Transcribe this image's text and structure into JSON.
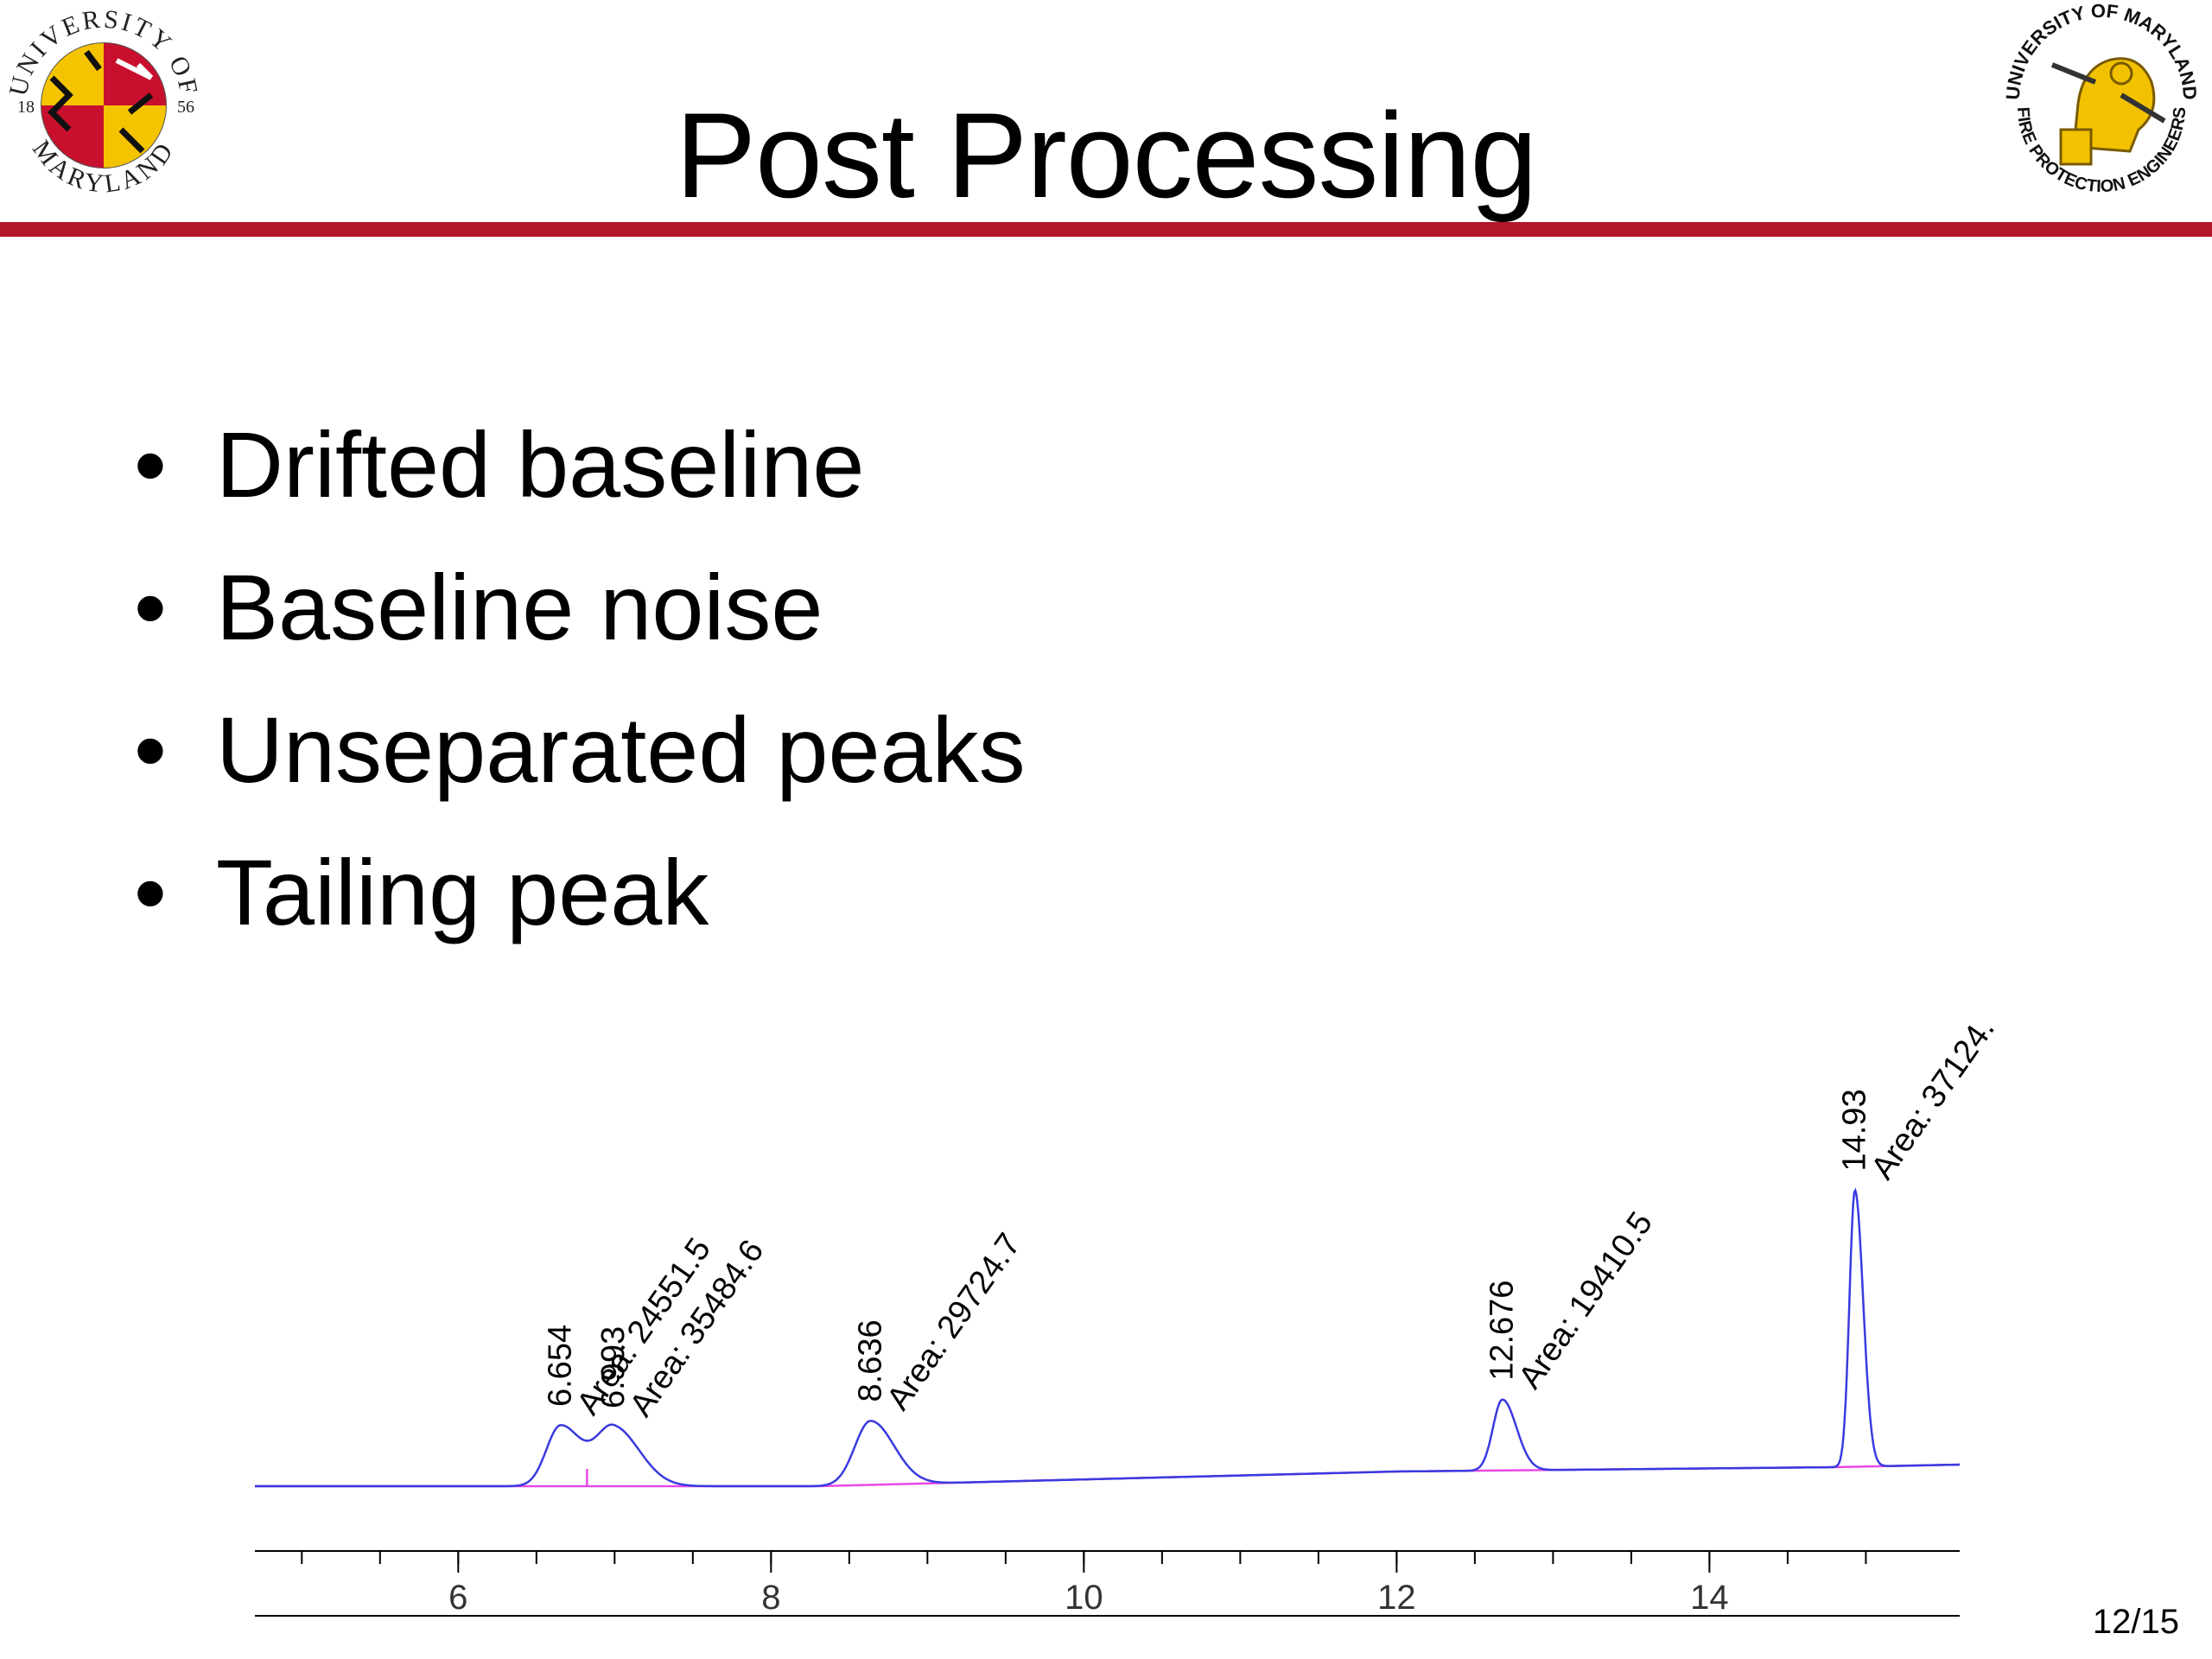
{
  "slide": {
    "title": "Post Processing",
    "bullets": [
      "Drifted baseline",
      "Baseline noise",
      "Unseparated peaks",
      "Tailing peak"
    ],
    "page_number": "12/15",
    "logo_left": {
      "top_arc": "UNIVERSITY OF",
      "bottom_arc": "MARYLAND",
      "year_left": "18",
      "year_right": "56"
    },
    "logo_right": {
      "top_arc": "UNIVERSITY OF MARYLAND",
      "bottom_arc": "FIRE PROTECTION ENGINEERS"
    }
  },
  "colors": {
    "accent_rule": "#b3162a",
    "trace": "#3a3ae0",
    "baseline": "#e64ae6"
  },
  "chart_data": {
    "type": "line",
    "title": "",
    "xlabel": "",
    "ylabel": "",
    "x_ticks": [
      6,
      8,
      10,
      12,
      14
    ],
    "x_tick_labels": [
      "6",
      "8",
      "10",
      "12",
      "14"
    ],
    "xlim": [
      4.7,
      15.6
    ],
    "ylim": [
      0,
      100
    ],
    "peaks": [
      {
        "rt": 6.654,
        "rt_label": "6.654",
        "area_label": "Area: 24551.5",
        "height": 35
      },
      {
        "rt": 6.993,
        "rt_label": "6.993",
        "area_label": "Area: 35484.6",
        "height": 34
      },
      {
        "rt": 8.636,
        "rt_label": "8.636",
        "area_label": "Area: 29724.7",
        "height": 37
      },
      {
        "rt": 12.676,
        "rt_label": "12.676",
        "area_label": "Area: 19410.5",
        "height": 41
      },
      {
        "rt": 14.93,
        "rt_label": "14.93",
        "area_label": "Area: 37124.",
        "height": 160
      }
    ],
    "baseline": [
      [
        4.7,
        0
      ],
      [
        8.3,
        0
      ],
      [
        12.0,
        8.5
      ],
      [
        14.8,
        11
      ],
      [
        15.6,
        12.5
      ]
    ]
  }
}
